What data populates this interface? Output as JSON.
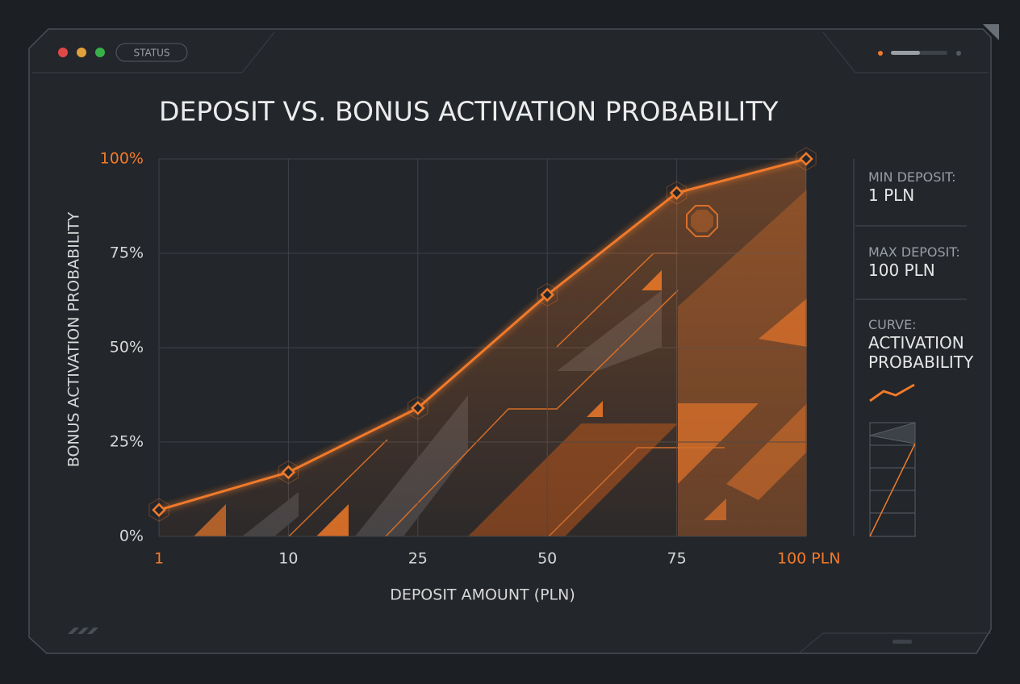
{
  "window": {
    "status": "STATUS"
  },
  "chart_data": {
    "type": "line",
    "title": "DEPOSIT VS. BONUS ACTIVATION PROBABILITY",
    "x_label": "DEPOSIT AMOUNT (PLN)",
    "y_label": "BONUS ACTIVATION PROBABILITY",
    "categories": [
      "1",
      "10",
      "25",
      "50",
      "75",
      "100 PLN"
    ],
    "series": [
      {
        "name": "ACTIVATION PROBABILITY",
        "color": "#f07a2a",
        "values": [
          7,
          17,
          34,
          64,
          91,
          100
        ]
      }
    ],
    "ylim": [
      0,
      100
    ],
    "yticks": [
      {
        "value": 0,
        "label": "0%"
      },
      {
        "value": 25,
        "label": "25%"
      },
      {
        "value": 50,
        "label": "50%"
      },
      {
        "value": 75,
        "label": "75%"
      },
      {
        "value": 100,
        "label": "100%"
      }
    ],
    "grid": true
  },
  "side_panel": {
    "min_label": "MIN DEPOSIT:",
    "min_value": "1 PLN",
    "max_label": "MAX DEPOSIT:",
    "max_value": "100 PLN",
    "curve_label": "CURVE:",
    "curve_value": "ACTIVATION PROBABILITY"
  }
}
